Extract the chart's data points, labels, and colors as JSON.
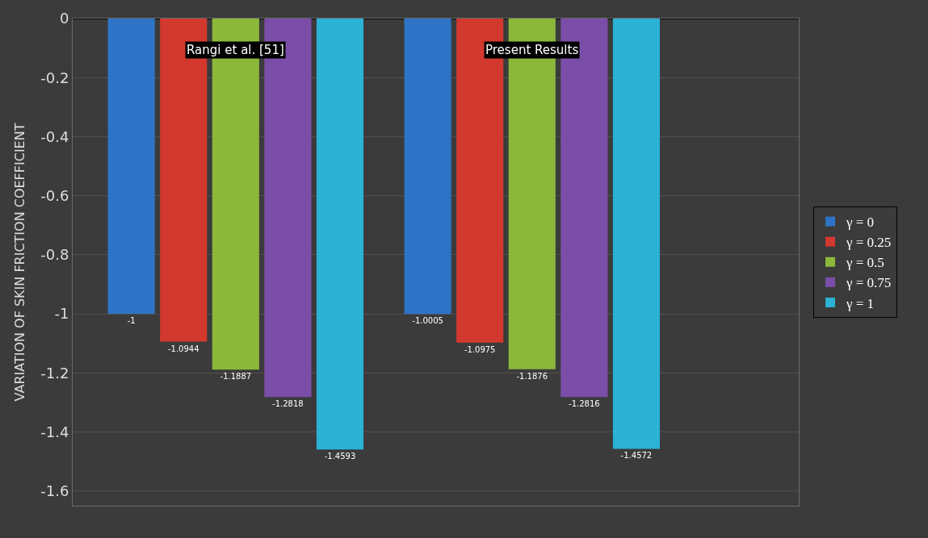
{
  "chart_data": {
    "type": "bar",
    "ylabel": "VARIATION OF SKIN FRICTION COEFFICIENT",
    "categories": [
      "Rangi et al. [51]",
      "Present Results"
    ],
    "series": [
      {
        "name": "γ = 0",
        "color": "#2e73c6",
        "values": [
          -1,
          -1.0005
        ]
      },
      {
        "name": "γ = 0.25",
        "color": "#d2382e",
        "values": [
          -1.0944,
          -1.0975
        ]
      },
      {
        "name": "γ = 0.5",
        "color": "#8bb83b",
        "values": [
          -1.1887,
          -1.1876
        ]
      },
      {
        "name": "γ = 0.75",
        "color": "#7a4ea8",
        "values": [
          -1.2818,
          -1.2816
        ]
      },
      {
        "name": "γ = 1",
        "color": "#2bb2d4",
        "values": [
          -1.4593,
          -1.4572
        ]
      }
    ],
    "ylim": [
      -1.65,
      0
    ],
    "yticks": [
      0,
      -0.2,
      -0.4,
      -0.6,
      -0.8,
      -1,
      -1.2,
      -1.4,
      -1.6
    ],
    "grid": "y",
    "legend": "right",
    "data_labels": true
  }
}
